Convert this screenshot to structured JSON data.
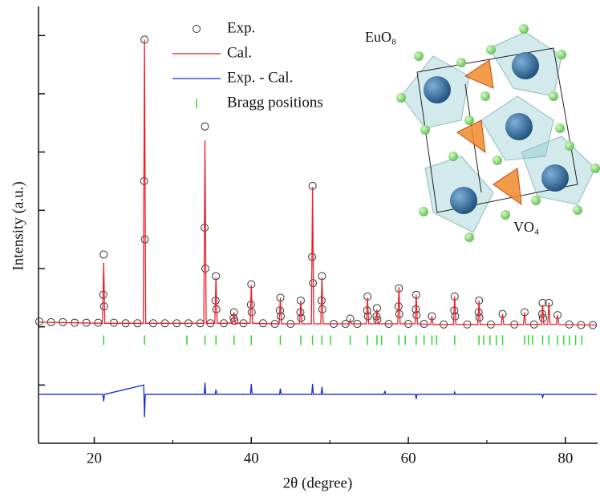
{
  "chart_data": {
    "type": "line",
    "xlabel": "2θ (degree)",
    "ylabel": "Intensity (a.u.)",
    "xlim": [
      12.9,
      84.1
    ],
    "xticks": [
      20,
      40,
      60,
      80
    ],
    "xminorticks": [
      30,
      50,
      70
    ],
    "ylim": [
      -2,
      5.5
    ],
    "yticks": [
      -1,
      0,
      1,
      2,
      3,
      4,
      5
    ],
    "legend": "top-center",
    "annotations": [
      {
        "text": "EuO₈",
        "color": "#1f3f6e"
      },
      {
        "text": "VO₄",
        "color": "#e87a2a"
      }
    ],
    "series": [
      {
        "name": "Exp.",
        "marker": "circle",
        "color": "#333333",
        "x": [
          13,
          14.5,
          16,
          17.5,
          19,
          20.5,
          21.15,
          21.2,
          21.25,
          22.5,
          24,
          25.5,
          26.35,
          26.4,
          26.45,
          27.5,
          29,
          30.5,
          32,
          33.5,
          34.05,
          34.1,
          34.15,
          34.8,
          35.45,
          35.5,
          35.55,
          36.5,
          37.75,
          37.8,
          37.85,
          39,
          39.95,
          40,
          40.05,
          41.5,
          43,
          43.65,
          43.7,
          43.75,
          45,
          46.25,
          46.3,
          46.35,
          47.75,
          47.8,
          47.85,
          48.95,
          49,
          49.05,
          50.5,
          52,
          52.6,
          53.5,
          54.75,
          54.8,
          54.85,
          55.95,
          56,
          56.05,
          57.5,
          58.75,
          58.8,
          58.85,
          60,
          60.95,
          61,
          61.05,
          62,
          63,
          64.5,
          65.85,
          65.9,
          65.95,
          67.5,
          68.95,
          69,
          69.05,
          70.5,
          72,
          73.5,
          74.8,
          76,
          77.05,
          77.1,
          77.15,
          77.9,
          79,
          80.5,
          82,
          83.5
        ],
        "values": [
          0.09,
          0.08,
          0.08,
          0.07,
          0.07,
          0.07,
          0.55,
          1.24,
          0.35,
          0.07,
          0.06,
          0.06,
          2.5,
          4.93,
          1.5,
          0.06,
          0.06,
          0.06,
          0.06,
          0.06,
          1.7,
          3.44,
          1.0,
          0.06,
          0.45,
          0.87,
          0.3,
          0.06,
          0.15,
          0.25,
          0.1,
          0.06,
          0.38,
          0.73,
          0.25,
          0.06,
          0.05,
          0.28,
          0.5,
          0.18,
          0.05,
          0.25,
          0.45,
          0.15,
          1.2,
          2.42,
          0.75,
          0.45,
          0.87,
          0.3,
          0.05,
          0.05,
          0.14,
          0.05,
          0.28,
          0.52,
          0.18,
          0.18,
          0.32,
          0.12,
          0.05,
          0.35,
          0.66,
          0.22,
          0.05,
          0.3,
          0.55,
          0.2,
          0.05,
          0.18,
          0.04,
          0.28,
          0.52,
          0.18,
          0.04,
          0.25,
          0.45,
          0.16,
          0.04,
          0.22,
          0.04,
          0.25,
          0.04,
          0.22,
          0.41,
          0.15,
          0.41,
          0.2,
          0.04,
          0.03,
          0.03
        ]
      },
      {
        "name": "Cal.",
        "marker": "line",
        "color": "#e8202a",
        "x": [
          13,
          21.05,
          21.2,
          21.35,
          26.25,
          26.4,
          26.55,
          33.95,
          34.1,
          34.25,
          35.35,
          35.5,
          35.65,
          37.65,
          37.8,
          37.95,
          39.85,
          40.0,
          40.15,
          43.55,
          43.7,
          43.85,
          46.15,
          46.3,
          46.45,
          47.65,
          47.8,
          47.95,
          48.85,
          49.0,
          49.15,
          52.45,
          52.6,
          52.75,
          54.65,
          54.8,
          54.95,
          55.85,
          56.0,
          56.15,
          58.65,
          58.8,
          58.95,
          60.85,
          61.0,
          61.15,
          62.85,
          63.0,
          63.15,
          65.75,
          65.9,
          66.05,
          68.85,
          69.0,
          69.15,
          71.85,
          72.0,
          72.15,
          74.65,
          74.8,
          74.95,
          76.95,
          77.1,
          77.25,
          77.75,
          77.9,
          78.05,
          78.85,
          79.0,
          79.15,
          84
        ],
        "values": [
          0.08,
          0.06,
          1.1,
          0.06,
          0.06,
          4.93,
          0.06,
          0.06,
          3.2,
          0.06,
          0.06,
          0.85,
          0.06,
          0.06,
          0.25,
          0.06,
          0.06,
          0.72,
          0.06,
          0.05,
          0.5,
          0.05,
          0.05,
          0.45,
          0.05,
          0.05,
          2.4,
          0.05,
          0.05,
          0.85,
          0.05,
          0.05,
          0.12,
          0.05,
          0.05,
          0.5,
          0.05,
          0.05,
          0.3,
          0.05,
          0.05,
          0.68,
          0.05,
          0.05,
          0.55,
          0.05,
          0.04,
          0.18,
          0.04,
          0.04,
          0.52,
          0.04,
          0.04,
          0.45,
          0.04,
          0.04,
          0.22,
          0.04,
          0.04,
          0.25,
          0.04,
          0.04,
          0.38,
          0.04,
          0.04,
          0.42,
          0.04,
          0.04,
          0.2,
          0.04,
          0.03
        ]
      },
      {
        "name": "Exp. - Cal.",
        "marker": "line",
        "color": "#1a2bd6",
        "x": [
          13,
          21.1,
          21.2,
          21.3,
          26.3,
          26.4,
          26.5,
          34.0,
          34.1,
          34.2,
          35.4,
          35.5,
          35.6,
          39.9,
          40.0,
          40.1,
          43.6,
          43.7,
          43.8,
          47.7,
          47.8,
          47.9,
          48.9,
          49.0,
          49.1,
          56.9,
          57.0,
          57.1,
          60.9,
          61.0,
          61.1,
          65.8,
          65.9,
          66.0,
          77.0,
          77.1,
          77.2,
          84
        ],
        "values": [
          -1.16,
          -1.16,
          -1.28,
          -1.16,
          -1.0,
          -1.55,
          -1.16,
          -1.16,
          -0.96,
          -1.16,
          -1.16,
          -1.08,
          -1.16,
          -1.16,
          -0.98,
          -1.16,
          -1.16,
          -1.06,
          -1.16,
          -1.16,
          -0.98,
          -1.16,
          -1.16,
          -1.03,
          -1.16,
          -1.16,
          -1.1,
          -1.16,
          -1.16,
          -1.24,
          -1.16,
          -1.16,
          -1.12,
          -1.16,
          -1.16,
          -1.22,
          -1.16,
          -1.16
        ]
      },
      {
        "name": "Bragg positions",
        "marker": "tick",
        "color": "#2fd82f",
        "x": [
          21.2,
          26.4,
          31.8,
          34.1,
          35.5,
          37.8,
          40.0,
          43.7,
          46.3,
          47.8,
          49.0,
          50.1,
          52.6,
          54.8,
          56.0,
          56.6,
          58.8,
          59.6,
          61.0,
          62.0,
          63.0,
          63.6,
          65.9,
          69.0,
          69.6,
          70.4,
          71.2,
          72.0,
          74.8,
          75.3,
          75.8,
          77.1,
          77.9,
          79.0,
          79.8,
          80.5,
          81.3,
          82.1
        ],
        "values": [
          -0.23,
          -0.23,
          -0.23,
          -0.23,
          -0.23,
          -0.23,
          -0.23,
          -0.23,
          -0.23,
          -0.23,
          -0.23,
          -0.23,
          -0.23,
          -0.23,
          -0.23,
          -0.23,
          -0.23,
          -0.23,
          -0.23,
          -0.23,
          -0.23,
          -0.23,
          -0.23,
          -0.23,
          -0.23,
          -0.23,
          -0.23,
          -0.23,
          -0.23,
          -0.23,
          -0.23,
          -0.23,
          -0.23,
          -0.23,
          -0.23,
          -0.23,
          -0.23,
          -0.23
        ]
      }
    ]
  }
}
